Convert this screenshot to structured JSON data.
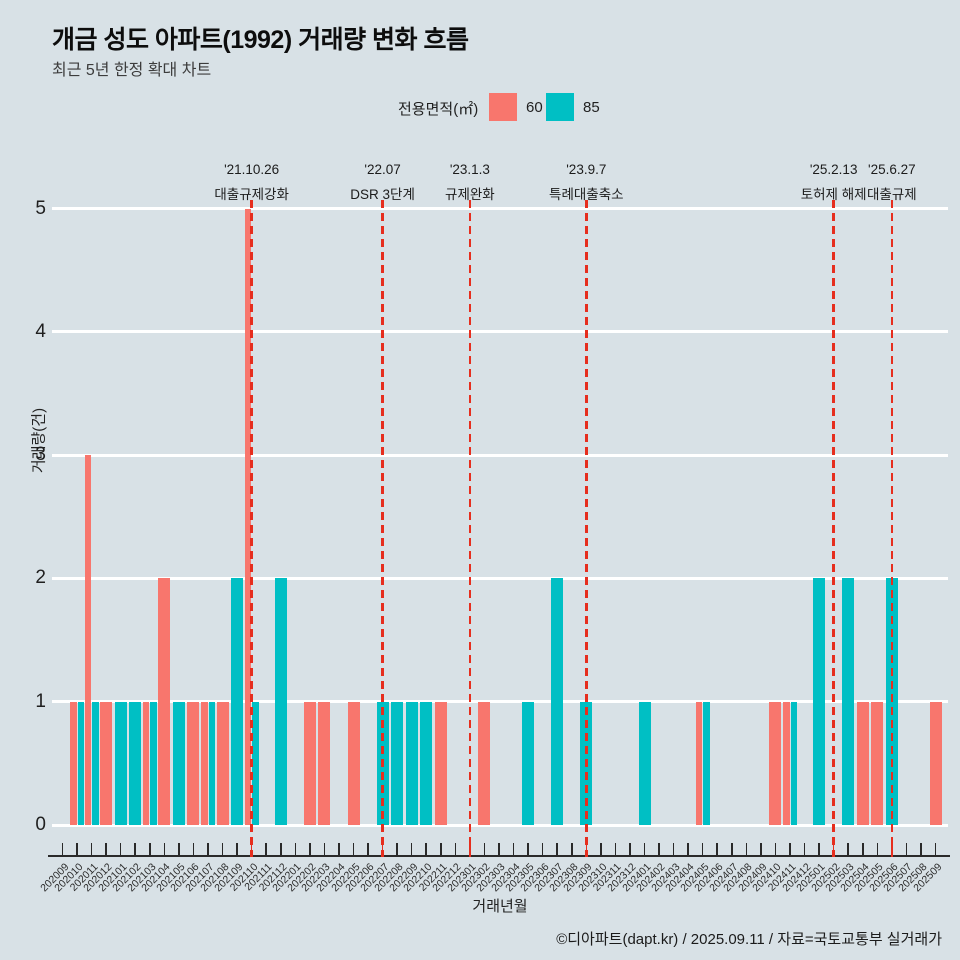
{
  "page": {
    "title": "개금 성도 아파트(1992) 거래량 변화 흐름",
    "subtitle": "최근 5년 한정 확대 차트",
    "footer": "©디아파트(dapt.kr) / 2025.09.11 / 자료=국토교통부 실거래가"
  },
  "colors": {
    "background": "#d8e1e6",
    "series_60": "#F8766D",
    "series_85": "#00BFC4",
    "event_line": "#e62e1e",
    "gridline": "#ffffff"
  },
  "chart_data": {
    "type": "bar",
    "title": "개금 성도 아파트(1992) 거래량 변화 흐름",
    "subtitle": "최근 5년 한정 확대 차트",
    "xlabel": "거래년월",
    "ylabel": "거래량(건)",
    "ylim": [
      0,
      5
    ],
    "yticks": [
      0,
      1,
      2,
      3,
      4,
      5
    ],
    "grid": true,
    "legend": {
      "title": "전용면적(㎡)",
      "position": "top",
      "entries": [
        {
          "name": "60",
          "color": "#F8766D"
        },
        {
          "name": "85",
          "color": "#00BFC4"
        }
      ]
    },
    "categories": [
      "202009",
      "202010",
      "202011",
      "202012",
      "202101",
      "202102",
      "202103",
      "202104",
      "202105",
      "202106",
      "202107",
      "202108",
      "202109",
      "202110",
      "202111",
      "202112",
      "202201",
      "202202",
      "202203",
      "202204",
      "202205",
      "202206",
      "202207",
      "202208",
      "202209",
      "202210",
      "202211",
      "202212",
      "202301",
      "202302",
      "202303",
      "202304",
      "202305",
      "202306",
      "202307",
      "202308",
      "202309",
      "202310",
      "202311",
      "202312",
      "202401",
      "202402",
      "202403",
      "202404",
      "202405",
      "202406",
      "202407",
      "202408",
      "202409",
      "202410",
      "202411",
      "202412",
      "202501",
      "202502",
      "202503",
      "202504",
      "202505",
      "202506",
      "202507",
      "202508",
      "202509"
    ],
    "series": [
      {
        "name": "60",
        "color": "#F8766D",
        "values": [
          null,
          1,
          3,
          1,
          null,
          null,
          1,
          2,
          null,
          1,
          1,
          1,
          null,
          5,
          null,
          null,
          null,
          1,
          1,
          null,
          1,
          null,
          null,
          null,
          null,
          null,
          1,
          null,
          null,
          1,
          null,
          null,
          null,
          null,
          null,
          null,
          null,
          null,
          null,
          null,
          null,
          null,
          null,
          null,
          1,
          null,
          null,
          null,
          null,
          1,
          1,
          null,
          null,
          null,
          null,
          1,
          1,
          null,
          null,
          null,
          1
        ]
      },
      {
        "name": "85",
        "color": "#00BFC4",
        "values": [
          null,
          1,
          1,
          null,
          1,
          1,
          1,
          null,
          1,
          null,
          1,
          null,
          2,
          1,
          null,
          2,
          null,
          null,
          null,
          null,
          null,
          null,
          1,
          1,
          1,
          1,
          null,
          null,
          null,
          null,
          null,
          null,
          1,
          null,
          2,
          null,
          1,
          null,
          null,
          null,
          1,
          null,
          null,
          null,
          1,
          null,
          null,
          null,
          null,
          null,
          1,
          null,
          2,
          null,
          2,
          null,
          null,
          2,
          null,
          null,
          null
        ]
      }
    ],
    "events": [
      {
        "date": "'21.10.26",
        "label": "대출규제강화",
        "month": "202110"
      },
      {
        "date": "'22.07",
        "label": "DSR 3단계",
        "month": "202207"
      },
      {
        "date": "'23.1.3",
        "label": "규제완화",
        "month": "202301"
      },
      {
        "date": "'23.9.7",
        "label": "특례대출축소",
        "month": "202309"
      },
      {
        "date": "'25.2.13",
        "label": "토허제 해제",
        "month": "202502"
      },
      {
        "date": "'25.6.27",
        "label": "대출규제",
        "month": "202506"
      }
    ]
  }
}
